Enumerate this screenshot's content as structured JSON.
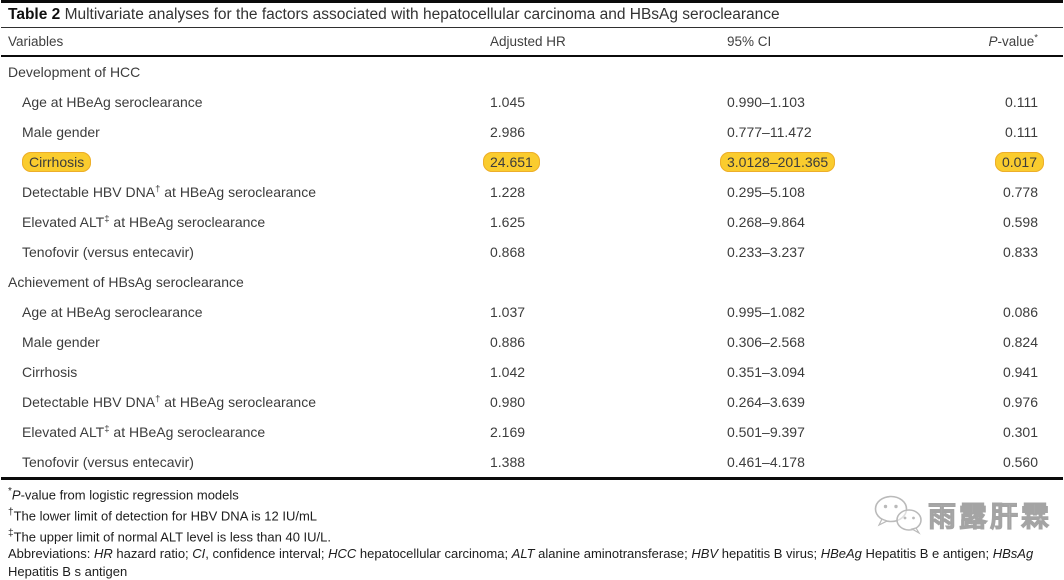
{
  "title": {
    "label": "Table 2",
    "text": "Multivariate analyses for the factors associated with hepatocellular carcinoma and HBsAg seroclearance"
  },
  "header": {
    "variables": "Variables",
    "adjusted_hr": "Adjusted HR",
    "ci": "95% CI",
    "p_italic": "P",
    "p_rest": "-value",
    "p_sup": "*"
  },
  "sections": [
    {
      "label": "Development of HCC",
      "rows": [
        {
          "variable": "Age at HBeAg seroclearance",
          "variable_sup": "",
          "variable_post": "",
          "hr": "1.045",
          "ci": "0.990–1.103",
          "p": "0.111",
          "highlight": false
        },
        {
          "variable": "Male gender",
          "variable_sup": "",
          "variable_post": "",
          "hr": "2.986",
          "ci": "0.777–11.472",
          "p": "0.111",
          "highlight": false
        },
        {
          "variable": "Cirrhosis",
          "variable_sup": "",
          "variable_post": "",
          "hr": "24.651",
          "ci": "3.0128–201.365",
          "p": "0.017",
          "highlight": true
        },
        {
          "variable": "Detectable HBV DNA",
          "variable_sup": "†",
          "variable_post": " at HBeAg seroclearance",
          "hr": "1.228",
          "ci": "0.295–5.108",
          "p": "0.778",
          "highlight": false
        },
        {
          "variable": "Elevated ALT",
          "variable_sup": "‡",
          "variable_post": " at HBeAg seroclearance",
          "hr": "1.625",
          "ci": "0.268–9.864",
          "p": "0.598",
          "highlight": false
        },
        {
          "variable": "Tenofovir (versus entecavir)",
          "variable_sup": "",
          "variable_post": "",
          "hr": "0.868",
          "ci": "0.233–3.237",
          "p": "0.833",
          "highlight": false
        }
      ]
    },
    {
      "label": "Achievement of HBsAg seroclearance",
      "rows": [
        {
          "variable": "Age at HBeAg seroclearance",
          "variable_sup": "",
          "variable_post": "",
          "hr": "1.037",
          "ci": "0.995–1.082",
          "p": "0.086",
          "highlight": false
        },
        {
          "variable": "Male gender",
          "variable_sup": "",
          "variable_post": "",
          "hr": "0.886",
          "ci": "0.306–2.568",
          "p": "0.824",
          "highlight": false
        },
        {
          "variable": "Cirrhosis",
          "variable_sup": "",
          "variable_post": "",
          "hr": "1.042",
          "ci": "0.351–3.094",
          "p": "0.941",
          "highlight": false
        },
        {
          "variable": "Detectable HBV DNA",
          "variable_sup": "†",
          "variable_post": " at HBeAg seroclearance",
          "hr": "0.980",
          "ci": "0.264–3.639",
          "p": "0.976",
          "highlight": false
        },
        {
          "variable": "Elevated ALT",
          "variable_sup": "‡",
          "variable_post": " at HBeAg seroclearance",
          "hr": "2.169",
          "ci": "0.501–9.397",
          "p": "0.301",
          "highlight": false
        },
        {
          "variable": "Tenofovir (versus entecavir)",
          "variable_sup": "",
          "variable_post": "",
          "hr": "1.388",
          "ci": "0.461–4.178",
          "p": "0.560",
          "highlight": false
        }
      ]
    }
  ],
  "footnotes": [
    {
      "marker": "*",
      "segments": [
        {
          "text": "P",
          "italic": true
        },
        {
          "text": "-value from logistic regression models",
          "italic": false
        }
      ]
    },
    {
      "marker": "†",
      "segments": [
        {
          "text": "The lower limit of detection for HBV DNA is 12 IU/mL",
          "italic": false
        }
      ]
    },
    {
      "marker": "‡",
      "segments": [
        {
          "text": "The upper limit of normal ALT level is less than 40 IU/L.",
          "italic": false
        }
      ]
    }
  ],
  "abbreviations": {
    "segments": [
      {
        "text": "Abbreviations: ",
        "italic": false
      },
      {
        "text": "HR",
        "italic": true
      },
      {
        "text": " hazard ratio; ",
        "italic": false
      },
      {
        "text": "CI",
        "italic": true
      },
      {
        "text": ", confidence interval; ",
        "italic": false
      },
      {
        "text": "HCC",
        "italic": true
      },
      {
        "text": " hepatocellular carcinoma; ",
        "italic": false
      },
      {
        "text": "ALT",
        "italic": true
      },
      {
        "text": " alanine aminotransferase; ",
        "italic": false
      },
      {
        "text": "HBV",
        "italic": true
      },
      {
        "text": " hepatitis B virus; ",
        "italic": false
      },
      {
        "text": "HBeAg",
        "italic": true
      },
      {
        "text": " Hepatitis B e antigen; ",
        "italic": false
      },
      {
        "text": "HBsAg",
        "italic": true
      },
      {
        "text": " Hepatitis B s antigen",
        "italic": false
      }
    ]
  },
  "watermark": {
    "text": "雨露肝霖",
    "icon": "wechat-logo-icon"
  },
  "colors": {
    "highlight": "#FACC2E",
    "highlight_border": "#EDAE2B",
    "rule": "#0B0B0B",
    "text": "#3C3C3C"
  }
}
